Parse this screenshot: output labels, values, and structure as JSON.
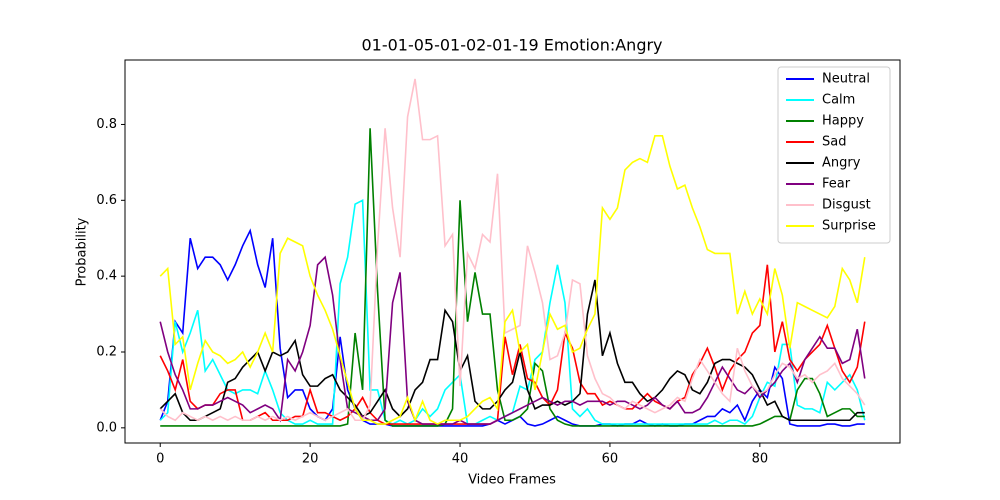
{
  "chart_data": {
    "type": "line",
    "title": "01-01-05-01-02-01-19 Emotion:Angry",
    "xlabel": "Video Frames",
    "ylabel": "Probability",
    "x": [
      0,
      1,
      2,
      3,
      4,
      5,
      6,
      7,
      8,
      9,
      10,
      11,
      12,
      13,
      14,
      15,
      16,
      17,
      18,
      19,
      20,
      21,
      22,
      23,
      24,
      25,
      26,
      27,
      28,
      29,
      30,
      31,
      32,
      33,
      34,
      35,
      36,
      37,
      38,
      39,
      40,
      41,
      42,
      43,
      44,
      45,
      46,
      47,
      48,
      49,
      50,
      51,
      52,
      53,
      54,
      55,
      56,
      57,
      58,
      59,
      60,
      61,
      62,
      63,
      64,
      65,
      66,
      67,
      68,
      69,
      70,
      71,
      72,
      73,
      74,
      75,
      76,
      77,
      78,
      79,
      80,
      81,
      82,
      83,
      84,
      85,
      86,
      87,
      88,
      89,
      90,
      91,
      92,
      93,
      94
    ],
    "xlim": [
      -4.7,
      98.7
    ],
    "xticks": [
      0,
      20,
      40,
      60,
      80
    ],
    "ylim": [
      -0.04,
      0.97
    ],
    "yticks": [
      {
        "value": 0,
        "label": "0.0"
      },
      0.2,
      0.4,
      0.6,
      0.8
    ],
    "grid": false,
    "legend": "upper right",
    "series": [
      {
        "name": "Neutral",
        "color": "#0000ff",
        "values": [
          0.02,
          0.07,
          0.28,
          0.25,
          0.5,
          0.42,
          0.45,
          0.45,
          0.43,
          0.39,
          0.43,
          0.48,
          0.52,
          0.43,
          0.37,
          0.5,
          0.21,
          0.08,
          0.1,
          0.1,
          0.05,
          0.03,
          0.02,
          0.05,
          0.24,
          0.1,
          0.05,
          0.02,
          0.01,
          0.01,
          0.01,
          0.005,
          0.005,
          0.005,
          0.005,
          0.005,
          0.005,
          0.005,
          0.005,
          0.005,
          0.005,
          0.005,
          0.005,
          0.005,
          0.01,
          0.02,
          0.01,
          0.02,
          0.03,
          0.01,
          0.005,
          0.01,
          0.02,
          0.03,
          0.02,
          0.01,
          0.005,
          0.005,
          0.005,
          0.01,
          0.01,
          0.005,
          0.01,
          0.01,
          0.02,
          0.01,
          0.005,
          0.01,
          0.005,
          0.005,
          0.01,
          0.01,
          0.02,
          0.03,
          0.03,
          0.05,
          0.04,
          0.06,
          0.02,
          0.07,
          0.1,
          0.08,
          0.16,
          0.13,
          0.01,
          0.005,
          0.005,
          0.005,
          0.005,
          0.01,
          0.01,
          0.005,
          0.005,
          0.01,
          0.01
        ]
      },
      {
        "name": "Calm",
        "color": "#00ffff",
        "values": [
          0.02,
          0.04,
          0.28,
          0.2,
          0.25,
          0.31,
          0.15,
          0.18,
          0.14,
          0.1,
          0.09,
          0.1,
          0.1,
          0.09,
          0.15,
          0.1,
          0.04,
          0.02,
          0.01,
          0.01,
          0.02,
          0.01,
          0.01,
          0.01,
          0.38,
          0.45,
          0.59,
          0.6,
          0.1,
          0.1,
          0.02,
          0.01,
          0.02,
          0.01,
          0.02,
          0.05,
          0.03,
          0.05,
          0.1,
          0.12,
          0.14,
          0.01,
          0.01,
          0.02,
          0.03,
          0.02,
          0.03,
          0.04,
          0.11,
          0.1,
          0.18,
          0.2,
          0.33,
          0.43,
          0.33,
          0.05,
          0.03,
          0.05,
          0.02,
          0.01,
          0.01,
          0.01,
          0.01,
          0.01,
          0.01,
          0.01,
          0.01,
          0.01,
          0.01,
          0.01,
          0.01,
          0.01,
          0.01,
          0.01,
          0.02,
          0.01,
          0.02,
          0.02,
          0.01,
          0.03,
          0.08,
          0.12,
          0.11,
          0.22,
          0.22,
          0.06,
          0.05,
          0.05,
          0.04,
          0.12,
          0.1,
          0.12,
          0.14,
          0.1,
          0.02
        ]
      },
      {
        "name": "Happy",
        "color": "#008000",
        "values": [
          0.005,
          0.005,
          0.005,
          0.005,
          0.005,
          0.005,
          0.005,
          0.005,
          0.005,
          0.005,
          0.005,
          0.005,
          0.005,
          0.005,
          0.005,
          0.005,
          0.005,
          0.005,
          0.005,
          0.005,
          0.005,
          0.005,
          0.005,
          0.005,
          0.005,
          0.01,
          0.25,
          0.1,
          0.79,
          0.36,
          0.02,
          0.005,
          0.005,
          0.005,
          0.005,
          0.005,
          0.005,
          0.005,
          0.01,
          0.05,
          0.6,
          0.28,
          0.41,
          0.3,
          0.3,
          0.1,
          0.02,
          0.02,
          0.03,
          0.05,
          0.17,
          0.15,
          0.05,
          0.02,
          0.01,
          0.005,
          0.005,
          0.005,
          0.005,
          0.005,
          0.005,
          0.005,
          0.005,
          0.005,
          0.005,
          0.005,
          0.005,
          0.005,
          0.005,
          0.005,
          0.005,
          0.005,
          0.005,
          0.005,
          0.005,
          0.005,
          0.005,
          0.005,
          0.005,
          0.005,
          0.01,
          0.02,
          0.03,
          0.03,
          0.02,
          0.1,
          0.13,
          0.13,
          0.09,
          0.03,
          0.04,
          0.05,
          0.05,
          0.03,
          0.03
        ]
      },
      {
        "name": "Sad",
        "color": "#ff0000",
        "values": [
          0.19,
          0.15,
          0.1,
          0.18,
          0.07,
          0.05,
          0.06,
          0.06,
          0.09,
          0.1,
          0.1,
          0.02,
          0.02,
          0.03,
          0.04,
          0.02,
          0.02,
          0.02,
          0.03,
          0.03,
          0.1,
          0.04,
          0.04,
          0.03,
          0.02,
          0.03,
          0.05,
          0.08,
          0.04,
          0.02,
          0.01,
          0.01,
          0.01,
          0.01,
          0.01,
          0.01,
          0.01,
          0.01,
          0.01,
          0.01,
          0.01,
          0.01,
          0.01,
          0.01,
          0.01,
          0.02,
          0.24,
          0.14,
          0.22,
          0.13,
          0.12,
          0.08,
          0.06,
          0.1,
          0.25,
          0.21,
          0.12,
          0.09,
          0.09,
          0.06,
          0.07,
          0.06,
          0.05,
          0.05,
          0.07,
          0.09,
          0.07,
          0.06,
          0.05,
          0.07,
          0.08,
          0.14,
          0.17,
          0.21,
          0.16,
          0.1,
          0.15,
          0.18,
          0.2,
          0.25,
          0.27,
          0.43,
          0.2,
          0.28,
          0.18,
          0.15,
          0.18,
          0.2,
          0.22,
          0.27,
          0.21,
          0.15,
          0.12,
          0.16,
          0.28
        ]
      },
      {
        "name": "Angry",
        "color": "#000000",
        "values": [
          0.05,
          0.07,
          0.09,
          0.04,
          0.02,
          0.02,
          0.03,
          0.04,
          0.05,
          0.12,
          0.13,
          0.16,
          0.18,
          0.2,
          0.15,
          0.2,
          0.19,
          0.2,
          0.23,
          0.14,
          0.11,
          0.11,
          0.13,
          0.14,
          0.1,
          0.08,
          0.06,
          0.03,
          0.04,
          0.07,
          0.1,
          0.05,
          0.03,
          0.05,
          0.1,
          0.12,
          0.18,
          0.18,
          0.31,
          0.28,
          0.15,
          0.19,
          0.07,
          0.05,
          0.05,
          0.07,
          0.1,
          0.12,
          0.2,
          0.1,
          0.05,
          0.06,
          0.06,
          0.07,
          0.06,
          0.07,
          0.09,
          0.3,
          0.39,
          0.19,
          0.25,
          0.17,
          0.12,
          0.12,
          0.09,
          0.07,
          0.08,
          0.1,
          0.13,
          0.15,
          0.14,
          0.1,
          0.09,
          0.12,
          0.17,
          0.18,
          0.18,
          0.17,
          0.16,
          0.14,
          0.1,
          0.06,
          0.07,
          0.03,
          0.02,
          0.02,
          0.02,
          0.02,
          0.02,
          0.02,
          0.02,
          0.02,
          0.02,
          0.04,
          0.04
        ]
      },
      {
        "name": "Fear",
        "color": "#800080",
        "values": [
          0.28,
          0.2,
          0.14,
          0.1,
          0.05,
          0.05,
          0.06,
          0.06,
          0.07,
          0.08,
          0.07,
          0.06,
          0.04,
          0.05,
          0.06,
          0.05,
          0.02,
          0.18,
          0.15,
          0.2,
          0.27,
          0.43,
          0.45,
          0.35,
          0.18,
          0.05,
          0.04,
          0.03,
          0.02,
          0.02,
          0.05,
          0.33,
          0.41,
          0.07,
          0.02,
          0.01,
          0.01,
          0.01,
          0.01,
          0.01,
          0.02,
          0.01,
          0.01,
          0.01,
          0.01,
          0.02,
          0.03,
          0.04,
          0.05,
          0.06,
          0.07,
          0.08,
          0.07,
          0.06,
          0.07,
          0.07,
          0.06,
          0.07,
          0.07,
          0.07,
          0.06,
          0.07,
          0.07,
          0.06,
          0.05,
          0.06,
          0.08,
          0.06,
          0.05,
          0.07,
          0.04,
          0.04,
          0.05,
          0.08,
          0.12,
          0.16,
          0.13,
          0.1,
          0.09,
          0.11,
          0.08,
          0.1,
          0.12,
          0.15,
          0.17,
          0.12,
          0.18,
          0.21,
          0.24,
          0.21,
          0.21,
          0.17,
          0.18,
          0.26,
          0.13
        ]
      },
      {
        "name": "Disgust",
        "color": "#ffc0cb",
        "values": [
          0.05,
          0.03,
          0.02,
          0.04,
          0.03,
          0.02,
          0.03,
          0.02,
          0.03,
          0.02,
          0.03,
          0.02,
          0.02,
          0.03,
          0.02,
          0.03,
          0.02,
          0.03,
          0.02,
          0.03,
          0.04,
          0.03,
          0.02,
          0.03,
          0.04,
          0.05,
          0.02,
          0.02,
          0.06,
          0.48,
          0.79,
          0.58,
          0.45,
          0.82,
          0.92,
          0.76,
          0.76,
          0.77,
          0.48,
          0.51,
          0.11,
          0.46,
          0.42,
          0.51,
          0.49,
          0.67,
          0.25,
          0.26,
          0.27,
          0.48,
          0.41,
          0.33,
          0.18,
          0.19,
          0.25,
          0.39,
          0.38,
          0.19,
          0.13,
          0.09,
          0.08,
          0.06,
          0.05,
          0.07,
          0.06,
          0.05,
          0.04,
          0.05,
          0.06,
          0.08,
          0.07,
          0.13,
          0.18,
          0.15,
          0.12,
          0.09,
          0.07,
          0.21,
          0.15,
          0.11,
          0.09,
          0.1,
          0.14,
          0.17,
          0.16,
          0.13,
          0.14,
          0.12,
          0.14,
          0.15,
          0.17,
          0.13,
          0.11,
          0.09,
          0.06
        ]
      },
      {
        "name": "Surprise",
        "color": "#ffff00",
        "values": [
          0.4,
          0.42,
          0.22,
          0.24,
          0.1,
          0.17,
          0.23,
          0.2,
          0.19,
          0.17,
          0.18,
          0.2,
          0.16,
          0.2,
          0.25,
          0.2,
          0.46,
          0.5,
          0.49,
          0.48,
          0.4,
          0.35,
          0.31,
          0.26,
          0.19,
          0.12,
          0.05,
          0.02,
          0.02,
          0.01,
          0.01,
          0.02,
          0.03,
          0.08,
          0.02,
          0.07,
          0.02,
          0.01,
          0.02,
          0.02,
          0.02,
          0.03,
          0.05,
          0.07,
          0.08,
          0.05,
          0.28,
          0.31,
          0.2,
          0.22,
          0.1,
          0.2,
          0.3,
          0.26,
          0.27,
          0.2,
          0.21,
          0.26,
          0.3,
          0.58,
          0.55,
          0.58,
          0.68,
          0.7,
          0.71,
          0.7,
          0.77,
          0.77,
          0.69,
          0.63,
          0.64,
          0.58,
          0.53,
          0.47,
          0.46,
          0.46,
          0.46,
          0.3,
          0.36,
          0.3,
          0.34,
          0.3,
          0.42,
          0.35,
          0.21,
          0.33,
          0.32,
          0.31,
          0.3,
          0.29,
          0.32,
          0.42,
          0.39,
          0.33,
          0.45
        ]
      }
    ]
  }
}
